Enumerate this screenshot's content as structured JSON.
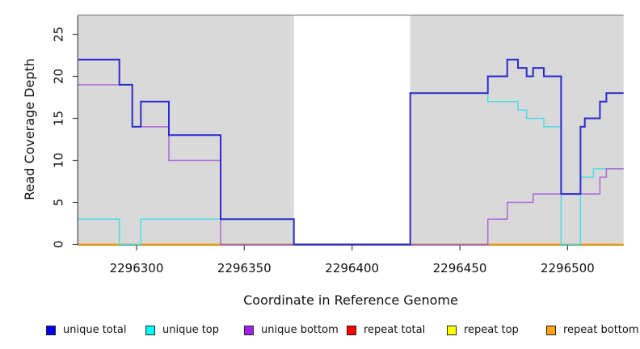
{
  "chart_data": {
    "type": "line",
    "line_style": "step",
    "title": "",
    "xlabel": "Coordinate in Reference Genome",
    "ylabel": "Read Coverage Depth",
    "xlim": [
      2296273,
      2296526
    ],
    "ylim": [
      0,
      27.2
    ],
    "x_ticks": [
      "2296300",
      "2296350",
      "2296400",
      "2296450",
      "2296500"
    ],
    "x_tick_values": [
      2296300,
      2296350,
      2296400,
      2296450,
      2296500
    ],
    "y_ticks": [
      "0",
      "5",
      "10",
      "15",
      "20",
      "25"
    ],
    "y_tick_values": [
      0,
      5,
      10,
      15,
      20,
      25
    ],
    "grid": false,
    "legend_position": "bottom",
    "shaded_regions": {
      "fill": "#d9d9d9",
      "top_border_color": "#969696",
      "regions": [
        [
          2296273,
          2296373
        ],
        [
          2296427,
          2296526
        ]
      ]
    },
    "axis_color": "#404040",
    "series": [
      {
        "name": "repeat total",
        "line_color": "#e02020",
        "points": [
          [
            2296273,
            0
          ],
          [
            2296526,
            0
          ]
        ]
      },
      {
        "name": "repeat top",
        "line_color": "#eded00",
        "points": [
          [
            2296273,
            0
          ],
          [
            2296526,
            0
          ]
        ]
      },
      {
        "name": "repeat bottom",
        "line_color": "#ffa500",
        "points": [
          [
            2296273,
            0
          ],
          [
            2296526,
            0
          ]
        ]
      },
      {
        "name": "unique top",
        "line_color": "#4adde8",
        "points": [
          [
            2296273,
            3
          ],
          [
            2296292,
            0
          ],
          [
            2296302,
            3
          ],
          [
            2296373,
            0
          ],
          [
            2296427,
            18
          ],
          [
            2296463,
            17
          ],
          [
            2296477,
            16
          ],
          [
            2296481,
            15
          ],
          [
            2296489,
            14
          ],
          [
            2296497,
            0
          ],
          [
            2296506,
            8
          ],
          [
            2296512,
            9
          ],
          [
            2296526,
            9
          ]
        ]
      },
      {
        "name": "unique bottom",
        "line_color": "#ac66d9",
        "points": [
          [
            2296273,
            19
          ],
          [
            2296298,
            14
          ],
          [
            2296315,
            10
          ],
          [
            2296339,
            0
          ],
          [
            2296463,
            3
          ],
          [
            2296472,
            5
          ],
          [
            2296484,
            6
          ],
          [
            2296515,
            8
          ],
          [
            2296518,
            9
          ],
          [
            2296526,
            9
          ]
        ]
      },
      {
        "name": "unique total",
        "line_color": "#2b2bd0",
        "points": [
          [
            2296273,
            22
          ],
          [
            2296292,
            19
          ],
          [
            2296298,
            14
          ],
          [
            2296302,
            17
          ],
          [
            2296315,
            13
          ],
          [
            2296339,
            3
          ],
          [
            2296373,
            0
          ],
          [
            2296427,
            18
          ],
          [
            2296463,
            20
          ],
          [
            2296472,
            22
          ],
          [
            2296477,
            21
          ],
          [
            2296481,
            20
          ],
          [
            2296484,
            21
          ],
          [
            2296489,
            20
          ],
          [
            2296497,
            6
          ],
          [
            2296506,
            14
          ],
          [
            2296508,
            15
          ],
          [
            2296515,
            17
          ],
          [
            2296518,
            18
          ],
          [
            2296526,
            18
          ]
        ]
      }
    ]
  },
  "legend": {
    "items": [
      {
        "label": "unique total",
        "swatch": "#0000ee"
      },
      {
        "label": "unique top",
        "swatch": "#00ffff"
      },
      {
        "label": "unique bottom",
        "swatch": "#a020f0"
      },
      {
        "label": "repeat total",
        "swatch": "#ff0000"
      },
      {
        "label": "repeat top",
        "swatch": "#ffff00"
      },
      {
        "label": "repeat bottom",
        "swatch": "#ffa500"
      }
    ]
  }
}
